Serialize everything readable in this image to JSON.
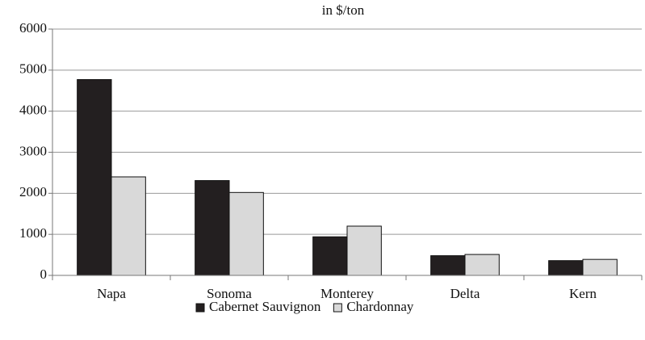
{
  "chart_data": {
    "type": "bar",
    "title": "in $/ton",
    "categories": [
      "Napa",
      "Sonoma",
      "Monterey",
      "Delta",
      "Kern"
    ],
    "series": [
      {
        "name": "Cabernet Sauvignon",
        "color": "#231f20",
        "values": [
          4770,
          2310,
          940,
          480,
          360
        ]
      },
      {
        "name": "Chardonnay",
        "color": "#d9d9d9",
        "values": [
          2400,
          2020,
          1200,
          510,
          390
        ]
      }
    ],
    "ylim": [
      0,
      6000
    ],
    "yticks": [
      0,
      1000,
      2000,
      3000,
      4000,
      5000,
      6000
    ],
    "grid": true,
    "legend": "bottom"
  }
}
